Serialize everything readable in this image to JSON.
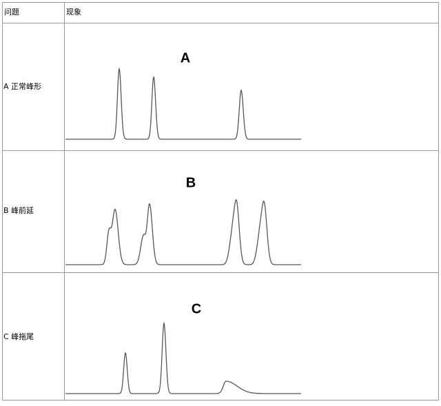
{
  "table": {
    "header": [
      "问题",
      "现象"
    ],
    "rows": [
      [
        "A 正常峰形",
        "A"
      ],
      [
        "B 峰前延",
        "B"
      ],
      [
        "C 峰拖尾",
        "C"
      ]
    ]
  }
}
